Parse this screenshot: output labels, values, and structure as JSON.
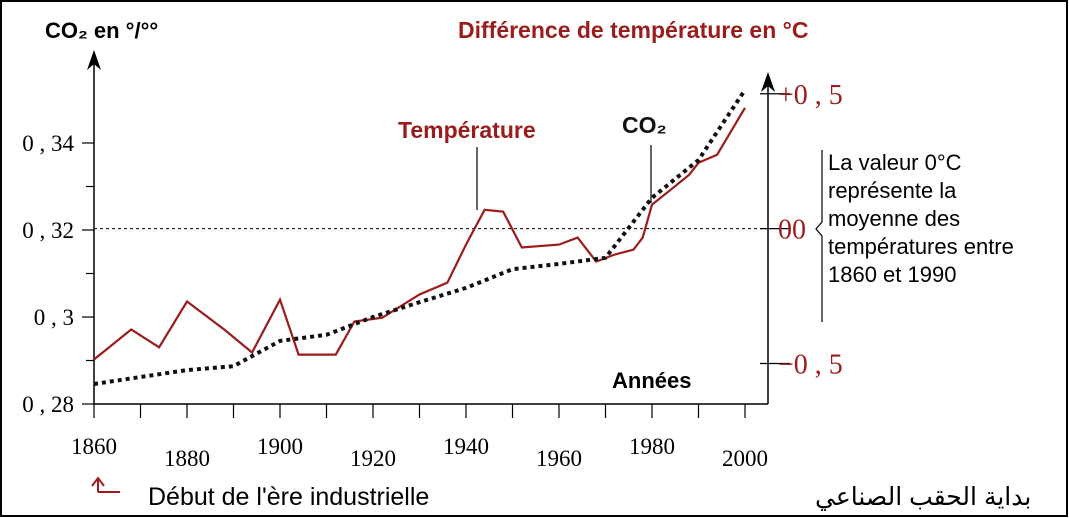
{
  "chart_data": {
    "type": "line",
    "y_label": "CO₂ en °/°°",
    "y2_label": "Différence de température en °C",
    "x_label": "Années",
    "note": [
      "La valeur 0°C",
      "représente la",
      "moyenne des",
      "températures entre",
      "1860 et 1990"
    ],
    "footer": "Début de l'ère industrielle",
    "footer_ar": "بداية الحقب الصناعي",
    "xlim": [
      1860,
      2000
    ],
    "xticks": [
      1860,
      1880,
      1900,
      1920,
      1940,
      1960,
      1980,
      2000
    ],
    "ylim": [
      0.28,
      0.36
    ],
    "yticks": [
      {
        "value": 0.28,
        "label": "0 , 28"
      },
      {
        "value": 0.3,
        "label": "0 , 3"
      },
      {
        "value": 0.32,
        "label": "0 , 32"
      },
      {
        "value": 0.34,
        "label": "0 , 34"
      }
    ],
    "y2lim": [
      -0.65,
      0.64
    ],
    "y2ticks": [
      {
        "value": -0.5,
        "label": "−0 , 5"
      },
      {
        "value": 0,
        "label": "00"
      },
      {
        "value": 0.5,
        "label": "+0 , 5"
      }
    ],
    "series": [
      {
        "name": "Température",
        "color": "#9b1c1c",
        "axis": "y2",
        "x": [
          1860,
          1868,
          1874,
          1880,
          1888,
          1894,
          1900,
          1904,
          1912,
          1916,
          1922,
          1930,
          1936,
          1940,
          1944,
          1948,
          1952,
          1960,
          1964,
          1968,
          1972,
          1976,
          1978,
          1980,
          1984,
          1988,
          1990,
          1994,
          2000
        ],
        "values": [
          -0.485,
          -0.374,
          -0.44,
          -0.27,
          -0.374,
          -0.459,
          -0.263,
          -0.467,
          -0.467,
          -0.344,
          -0.33,
          -0.244,
          -0.2,
          -0.059,
          0.07,
          0.063,
          -0.07,
          -0.059,
          -0.033,
          -0.122,
          -0.096,
          -0.078,
          -0.033,
          0.089,
          0.144,
          0.2,
          0.244,
          0.274,
          0.448
        ]
      },
      {
        "name": "CO₂",
        "color": "#111111",
        "axis": "y",
        "dash": "dotted",
        "x": [
          1860,
          1870,
          1880,
          1890,
          1900,
          1910,
          1920,
          1930,
          1940,
          1950,
          1960,
          1970,
          1980,
          1990,
          2000
        ],
        "values": [
          0.2846,
          0.2862,
          0.2878,
          0.2887,
          0.2945,
          0.2959,
          0.3,
          0.3034,
          0.3067,
          0.311,
          0.3122,
          0.3136,
          0.3274,
          0.3361,
          0.3522
        ]
      }
    ]
  }
}
